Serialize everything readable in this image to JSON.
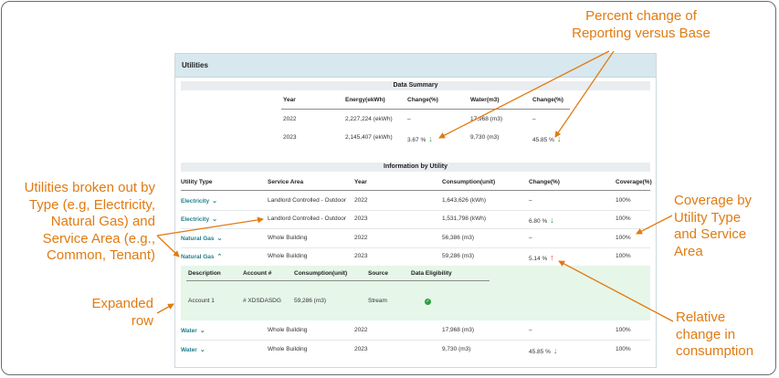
{
  "card": {
    "title": "Utilities"
  },
  "summary": {
    "title": "Data Summary",
    "headers": [
      "Year",
      "Energy(ekWh)",
      "Change(%)",
      "Water(m3)",
      "Change(%)"
    ],
    "rows": [
      {
        "year": "2022",
        "energy": "2,227,224 (ekWh)",
        "energy_change": "–",
        "water": "17,968 (m3)",
        "water_change": "–"
      },
      {
        "year": "2023",
        "energy": "2,145,407 (ekWh)",
        "energy_change": "3.67 %",
        "water": "9,730 (m3)",
        "water_change": "45.85 %"
      }
    ]
  },
  "info": {
    "title": "Information by Utility",
    "headers": [
      "Utility Type",
      "Service Area",
      "Year",
      "Consumption(unit)",
      "Change(%)",
      "Coverage(%)"
    ],
    "rows": [
      {
        "type": "Electricity",
        "area": "Landlord Controlled - Outdoor",
        "year": "2022",
        "consumption": "1,643,626 (kWh)",
        "change": "–",
        "coverage": "100%"
      },
      {
        "type": "Electricity",
        "area": "Landlord Controlled - Outdoor",
        "year": "2023",
        "consumption": "1,531,798 (kWh)",
        "change": "6.80 %",
        "coverage": "100%"
      },
      {
        "type": "Natural Gas",
        "area": "Whole Building",
        "year": "2022",
        "consumption": "56,386 (m3)",
        "change": "–",
        "coverage": "100%"
      },
      {
        "type": "Natural Gas",
        "area": "Whole Building",
        "year": "2023",
        "consumption": "59,286 (m3)",
        "change": "5.14 %",
        "coverage": "100%"
      },
      {
        "type": "Water",
        "area": "Whole Building",
        "year": "2022",
        "consumption": "17,968 (m3)",
        "change": "–",
        "coverage": "100%"
      },
      {
        "type": "Water",
        "area": "Whole Building",
        "year": "2023",
        "consumption": "9,730 (m3)",
        "change": "45.85 %",
        "coverage": "100%"
      }
    ],
    "expanded": {
      "headers": [
        "Description",
        "Account #",
        "Consumption(unit)",
        "Source",
        "Data Eligibility"
      ],
      "row": {
        "description": "Account 1",
        "account": "# XDSDASDG",
        "consumption": "59,286 (m3)",
        "source": "Stream"
      }
    }
  },
  "annotations": {
    "percent_change": [
      "Percent change of",
      "Reporting versus Base"
    ],
    "utilities_broken": [
      "Utilities broken out by",
      "Type (e.g, Electricity,",
      "Natural Gas) and",
      "Service Area (e.g.,",
      "Common, Tenant)"
    ],
    "coverage": [
      "Coverage by",
      "Utility Type",
      "and Service",
      "Area"
    ],
    "expanded_row": [
      "Expanded",
      "row"
    ],
    "relative_change": [
      "Relative",
      "change in",
      "consumption"
    ]
  },
  "colors": {
    "accent": "#e07b12",
    "link": "#1e7f8a",
    "down_arrow": "#2ea043",
    "up_arrow": "#e2382f",
    "expanded_bg": "#e6f6e9",
    "header_bg": "#d7e8ee"
  }
}
